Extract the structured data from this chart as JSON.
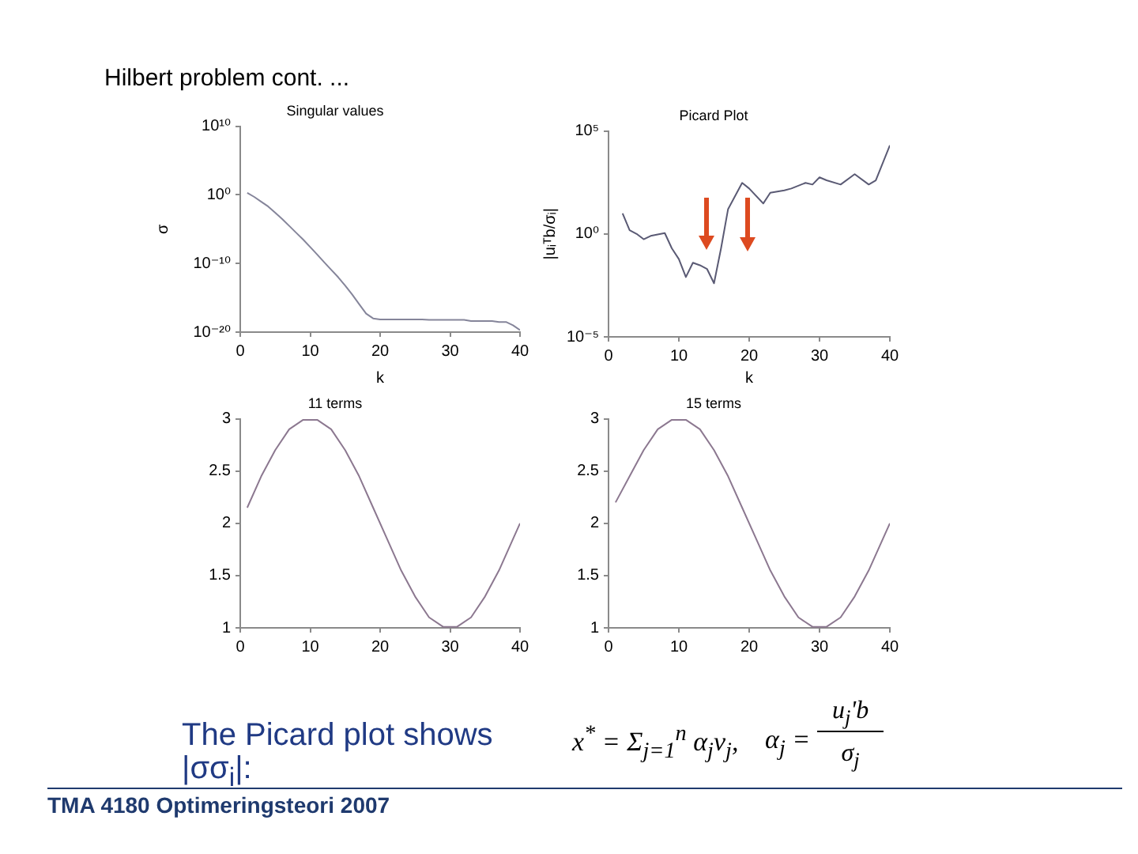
{
  "chart_data": [
    {
      "type": "other",
      "title": "Hilbert problem cont. ..."
    },
    {
      "type": "line",
      "title": "Singular values",
      "xlabel": "k",
      "ylabel": "σ",
      "x": [
        1,
        2,
        3,
        4,
        5,
        6,
        7,
        8,
        9,
        10,
        11,
        12,
        13,
        14,
        15,
        16,
        17,
        18,
        19,
        20,
        21,
        22,
        23,
        24,
        25,
        26,
        27,
        28,
        29,
        30,
        31,
        32,
        33,
        34,
        35,
        36,
        37,
        38,
        39,
        40
      ],
      "values": [
        2,
        0.5,
        0.1,
        0.02,
        0.0025,
        0.0003,
        3e-05,
        3e-06,
        3e-07,
        2.5e-08,
        2e-09,
        1.5e-10,
        1.2e-11,
        1e-12,
        6e-14,
        3e-15,
        1.2e-16,
        5e-18,
        1e-18,
        7e-19,
        7e-19,
        7e-19,
        7e-19,
        7e-19,
        7e-19,
        7e-19,
        6e-19,
        6e-19,
        6e-19,
        6e-19,
        6e-19,
        6e-19,
        4e-19,
        4e-19,
        4e-19,
        4e-19,
        3e-19,
        3e-19,
        1e-19,
        2e-20
      ],
      "color": "#85859a",
      "xlim": [
        0,
        40
      ],
      "xticks": [
        0,
        10,
        20,
        30,
        40
      ],
      "ylim": [
        1e-20,
        10000000000.0
      ],
      "yticks": [
        {
          "value": 1e-20,
          "label": "10⁻²⁰"
        },
        {
          "value": 1e-10,
          "label": "10⁻¹⁰"
        },
        {
          "value": 1,
          "label": "10⁰"
        },
        {
          "value": 10000000000.0,
          "label": "10¹⁰"
        }
      ],
      "log": "y"
    },
    {
      "type": "line",
      "title": "Picard Plot",
      "xlabel": "k",
      "ylabel": "|uᵢᵀb/σᵢ|",
      "x": [
        2,
        3,
        4,
        5,
        6,
        8,
        9,
        10,
        11,
        12,
        13,
        14,
        15,
        16,
        17,
        19,
        20,
        22,
        23,
        25,
        26,
        28,
        29,
        30,
        31,
        33,
        35,
        37,
        38,
        40
      ],
      "values": [
        10,
        1.5,
        1,
        0.55,
        0.8,
        1.1,
        0.2,
        0.06,
        0.008,
        0.04,
        0.03,
        0.02,
        0.004,
        0.2,
        16,
        300,
        160,
        30,
        100,
        130,
        160,
        300,
        250,
        560,
        400,
        250,
        800,
        250,
        400,
        20000
      ],
      "color": "#5a5a74",
      "xlim": [
        0,
        40
      ],
      "xticks": [
        0,
        10,
        20,
        30,
        40
      ],
      "ylim": [
        1e-05,
        100000.0
      ],
      "yticks": [
        {
          "value": 1e-05,
          "label": "10⁻⁵"
        },
        {
          "value": 1,
          "label": "10⁰"
        },
        {
          "value": 100000.0,
          "label": "10⁵"
        }
      ],
      "log": "y"
    },
    {
      "type": "line",
      "title": "11 terms",
      "x": [
        1,
        3,
        5,
        7,
        9,
        11,
        13,
        15,
        17,
        19,
        21,
        23,
        25,
        27,
        29,
        31,
        33,
        35,
        37,
        39,
        40
      ],
      "values": [
        2.15,
        2.45,
        2.7,
        2.9,
        2.99,
        2.99,
        2.9,
        2.7,
        2.45,
        2.15,
        1.85,
        1.55,
        1.3,
        1.1,
        1.01,
        1.01,
        1.1,
        1.3,
        1.55,
        1.85,
        2.0
      ],
      "color": "#8c7890",
      "xlim": [
        0,
        40
      ],
      "xticks": [
        0,
        10,
        20,
        30,
        40
      ],
      "ylim": [
        1,
        3
      ],
      "yticks": [
        1,
        1.5,
        2,
        2.5,
        3
      ]
    },
    {
      "type": "line",
      "title": "15 terms",
      "x": [
        1,
        3,
        5,
        7,
        9,
        11,
        13,
        15,
        17,
        19,
        21,
        23,
        25,
        27,
        29,
        31,
        33,
        35,
        37,
        39,
        40
      ],
      "values": [
        2.2,
        2.45,
        2.7,
        2.9,
        2.99,
        2.99,
        2.9,
        2.7,
        2.45,
        2.15,
        1.85,
        1.55,
        1.3,
        1.1,
        1.01,
        1.01,
        1.1,
        1.3,
        1.55,
        1.85,
        2.0
      ],
      "color": "#8c7890",
      "xlim": [
        0,
        40
      ],
      "xticks": [
        0,
        10,
        20,
        30,
        40
      ],
      "ylim": [
        1,
        3
      ],
      "yticks": [
        1,
        1.5,
        2,
        2.5,
        3
      ]
    },
    {
      "type": "other",
      "annotations": [
        "The Picard plot shows |σσ$_{i}$|:",
        "x$^{*}$ = Σ$_{j=1}$$^{n}$ α$_{j}$v$_{j}$,",
        "α$_{j}$ =",
        "u$_{j}$'b",
        "σ$_{j}$",
        "TMA 4180 Optimeringsteori 2007"
      ]
    }
  ]
}
